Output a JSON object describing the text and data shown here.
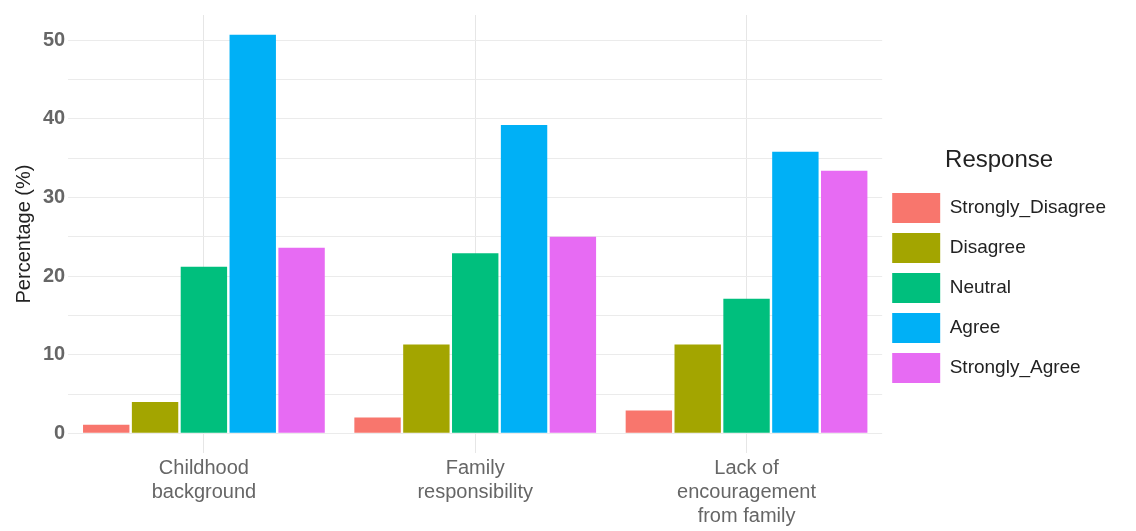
{
  "chart_data": {
    "type": "bar",
    "ylabel": "Percentage (%)",
    "legend_title": "Response",
    "categories": [
      "Childhood background",
      "Family responsibility",
      "Lack of encouragement from family"
    ],
    "series": [
      {
        "name": "Strongly_Disagree",
        "color": "#f8766d",
        "values": [
          1.1,
          2.0,
          2.9
        ]
      },
      {
        "name": "Disagree",
        "color": "#a3a500",
        "values": [
          4.0,
          11.3,
          11.3
        ]
      },
      {
        "name": "Neutral",
        "color": "#00bf7d",
        "values": [
          21.2,
          22.9,
          17.1
        ]
      },
      {
        "name": "Agree",
        "color": "#00b0f6",
        "values": [
          50.7,
          39.2,
          35.8
        ]
      },
      {
        "name": "Strongly_Agree",
        "color": "#e76bf3",
        "values": [
          23.6,
          25.0,
          33.4
        ]
      }
    ],
    "ylim": [
      -2.5,
      53.2
    ],
    "yticks": [
      0,
      {
        "value": 5,
        "label": null
      },
      10,
      {
        "value": 15,
        "label": null
      },
      20,
      {
        "value": 25,
        "label": null
      },
      30,
      {
        "value": 35,
        "label": null
      },
      40,
      {
        "value": 45,
        "label": null
      },
      50
    ],
    "grid": true,
    "legend": "right"
  }
}
